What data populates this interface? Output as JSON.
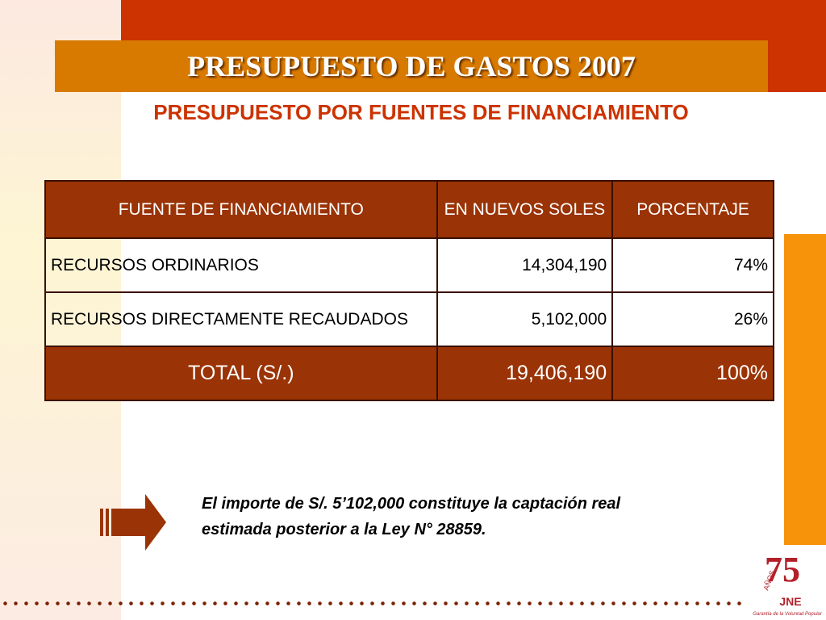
{
  "header": {
    "title": "PRESUPUESTO DE GASTOS 2007",
    "subtitle": "PRESUPUESTO POR FUENTES DE FINANCIAMIENTO"
  },
  "table": {
    "columns": [
      "FUENTE DE FINANCIAMIENTO",
      "EN NUEVOS SOLES",
      "PORCENTAJE"
    ],
    "rows": [
      [
        "RECURSOS ORDINARIOS",
        "14,304,190",
        "74%"
      ],
      [
        "RECURSOS DIRECTAMENTE RECAUDADOS",
        "5,102,000",
        "26%"
      ]
    ],
    "total": [
      "TOTAL (S/.)",
      "19,406,190",
      "100%"
    ]
  },
  "note": [
    "El importe de S/. 5’102,000 constituye la captación real",
    "estimada posterior a la Ley N° 28859."
  ],
  "logo": {
    "number": "75",
    "years": "AÑOS",
    "acronym": "JNE",
    "motto": "Garantía de la Voluntad Popular"
  }
}
